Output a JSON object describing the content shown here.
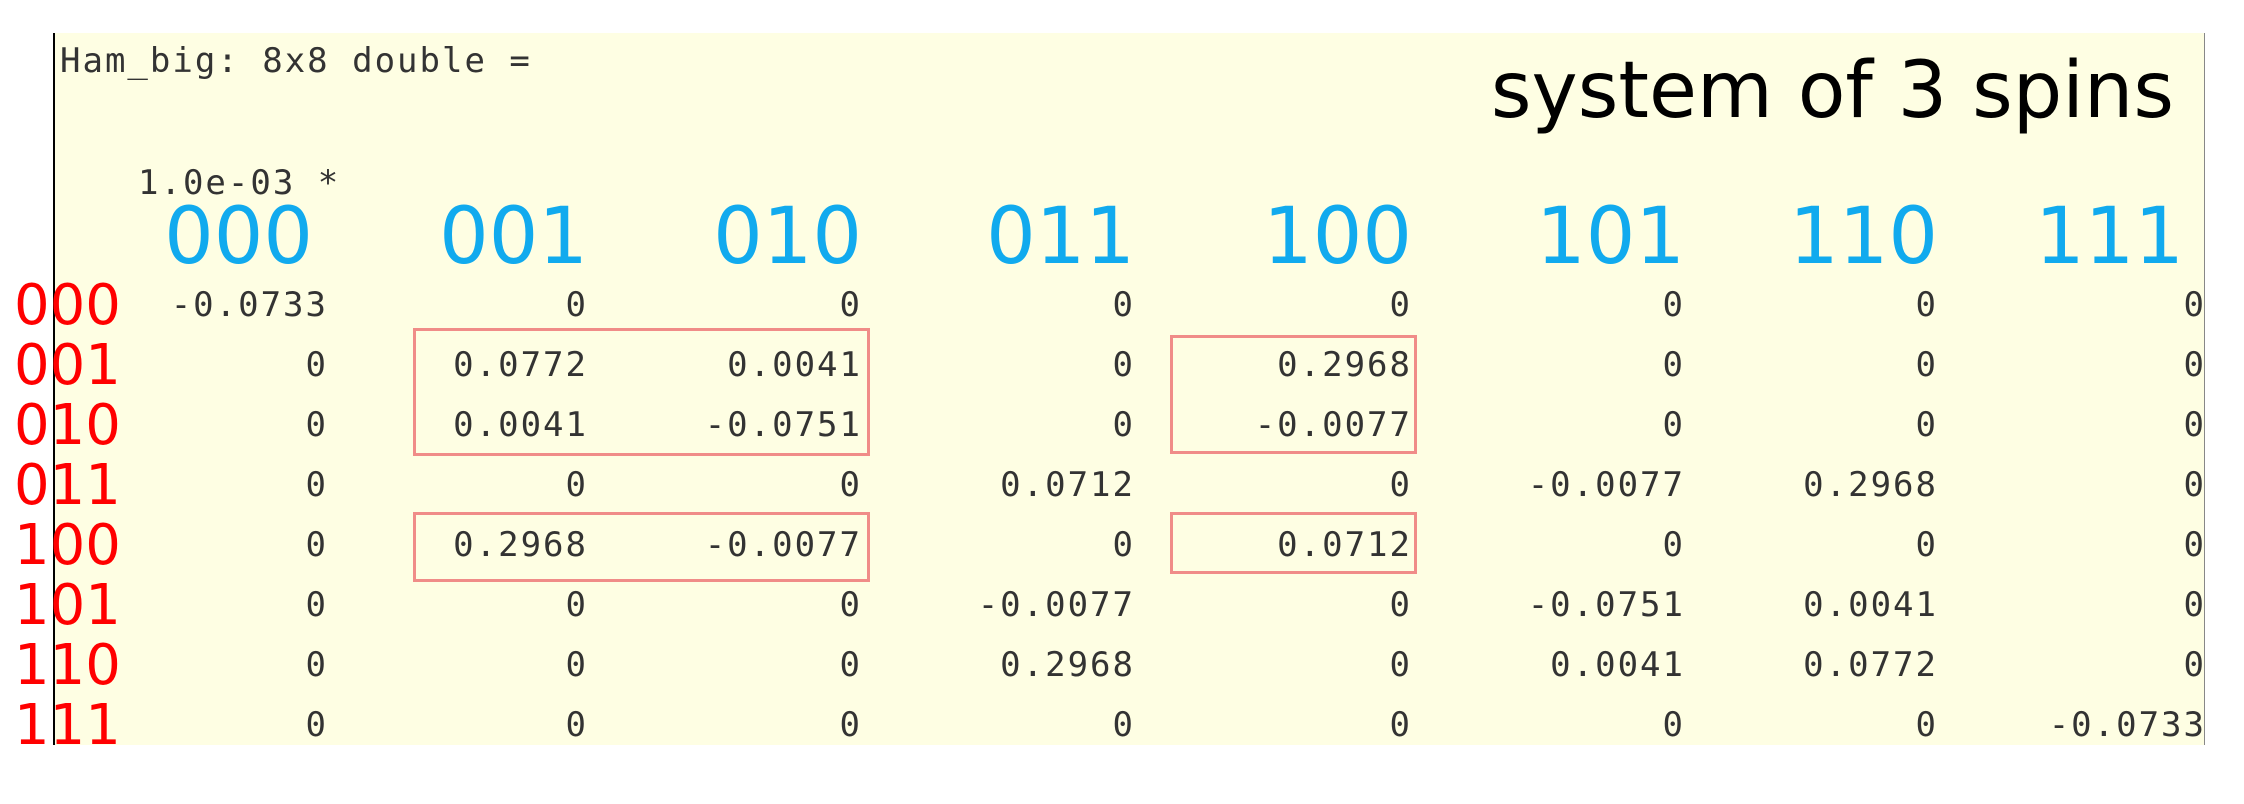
{
  "header": {
    "variable_line": "Ham_big: 8x8 double =",
    "scale_line": "1.0e-03 *",
    "title": "system of 3 spins"
  },
  "column_labels": [
    "000",
    "001",
    "010",
    "011",
    "100",
    "101",
    "110",
    "111"
  ],
  "row_labels": [
    "000",
    "001",
    "010",
    "011",
    "100",
    "101",
    "110",
    "111"
  ],
  "matrix": [
    [
      "-0.0733",
      "0",
      "0",
      "0",
      "0",
      "0",
      "0",
      "0"
    ],
    [
      "0",
      "0.0772",
      "0.0041",
      "0",
      "0.2968",
      "0",
      "0",
      "0"
    ],
    [
      "0",
      "0.0041",
      "-0.0751",
      "0",
      "-0.0077",
      "0",
      "0",
      "0"
    ],
    [
      "0",
      "0",
      "0",
      "0.0712",
      "0",
      "-0.0077",
      "0.2968",
      "0"
    ],
    [
      "0",
      "0.2968",
      "-0.0077",
      "0",
      "0.0712",
      "0",
      "0",
      "0"
    ],
    [
      "0",
      "0",
      "0",
      "-0.0077",
      "0",
      "-0.0751",
      "0.0041",
      "0"
    ],
    [
      "0",
      "0",
      "0",
      "0.2968",
      "0",
      "0.0041",
      "0.0772",
      "0"
    ],
    [
      "0",
      "0",
      "0",
      "0",
      "0",
      "0",
      "0",
      "-0.0733"
    ]
  ],
  "colors": {
    "panel_background": "#fefee3",
    "column_label": "#11aaee",
    "row_label": "#ff0000",
    "highlight_box": "#f08c88",
    "matrix_text": "#333333"
  }
}
